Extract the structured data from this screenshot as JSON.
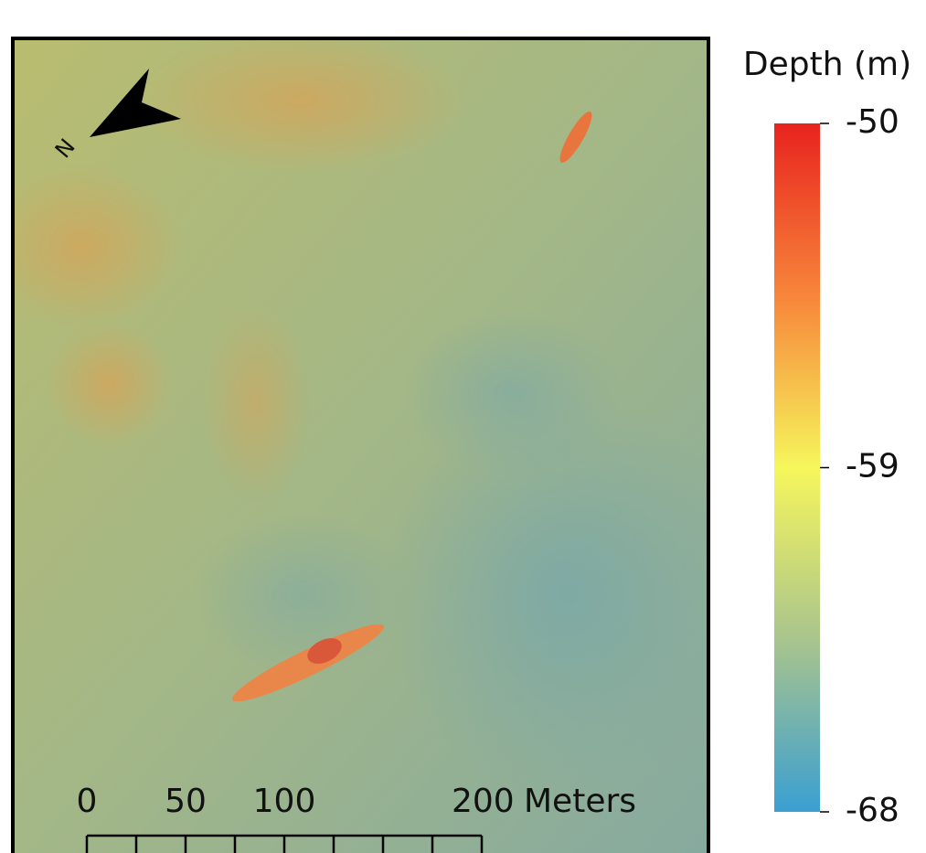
{
  "legend": {
    "title": "Depth (m)",
    "ticks": [
      -50,
      -59,
      -68
    ]
  },
  "scale_bar": {
    "ticks": [
      0,
      50,
      100,
      200
    ],
    "unit": "Meters"
  },
  "north_arrow": {
    "label": "N"
  }
}
